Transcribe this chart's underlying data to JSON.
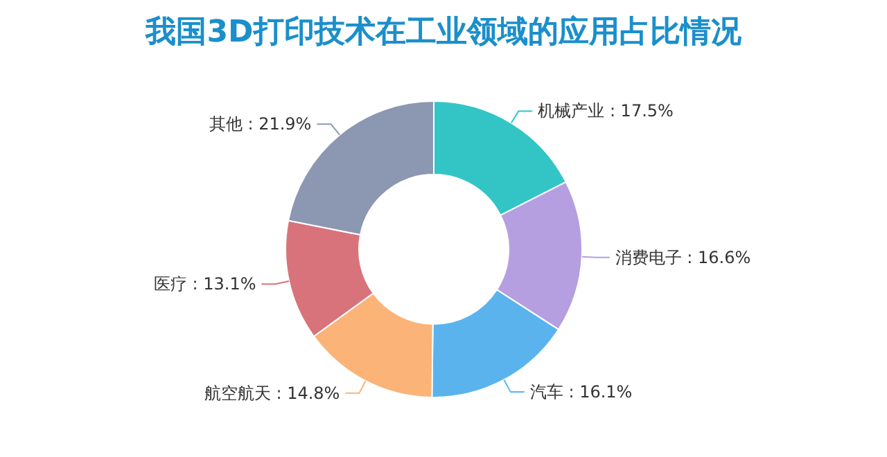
{
  "chart_data": {
    "type": "donut",
    "title": "我国3D打印技术在工业领域的应用占比情况",
    "categories": [
      "机械产业",
      "消费电子",
      "汽车",
      "航空航天",
      "医疗",
      "其他"
    ],
    "values": [
      17.5,
      16.6,
      16.1,
      14.8,
      13.1,
      21.9
    ],
    "colors": [
      "#33c5c6",
      "#b59fe0",
      "#5bb3ee",
      "#fbb378",
      "#d9737b",
      "#8c97b2"
    ],
    "value_labels": [
      ": 17.5%",
      ": 16.6%",
      ": 16.1%",
      ": 14.8%",
      ": 13.1%",
      ": 21.9%"
    ]
  }
}
